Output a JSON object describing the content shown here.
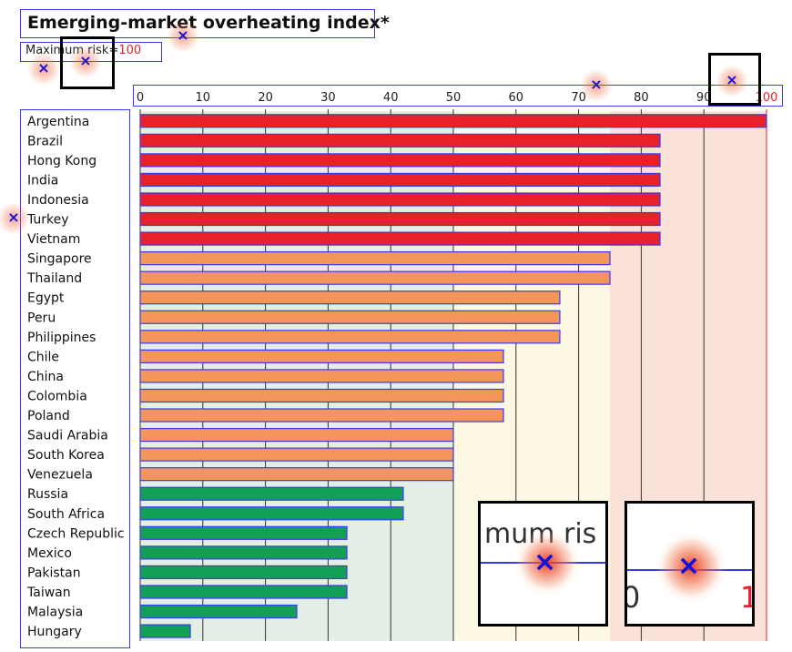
{
  "chart_data": {
    "type": "bar",
    "orientation": "horizontal",
    "title": "Emerging-market overheating index*",
    "subtitle_prefix": "Maximum risk=",
    "subtitle_value": "100",
    "xlim": [
      0,
      100
    ],
    "x_ticks": [
      "0",
      "10",
      "20",
      "30",
      "40",
      "50",
      "60",
      "70",
      "80",
      "90",
      "100"
    ],
    "categories": [
      "Argentina",
      "Brazil",
      "Hong Kong",
      "India",
      "Indonesia",
      "Turkey",
      "Vietnam",
      "Singapore",
      "Thailand",
      "Egypt",
      "Peru",
      "Philippines",
      "Chile",
      "China",
      "Colombia",
      "Poland",
      "Saudi Arabia",
      "South Korea",
      "Venezuela",
      "Russia",
      "South Africa",
      "Czech Republic",
      "Mexico",
      "Pakistan",
      "Taiwan",
      "Malaysia",
      "Hungary"
    ],
    "values": [
      100,
      83,
      83,
      83,
      83,
      83,
      83,
      75,
      75,
      67,
      67,
      67,
      58,
      58,
      58,
      58,
      50,
      50,
      50,
      42,
      42,
      33,
      33,
      33,
      33,
      25,
      8
    ],
    "risk_levels": [
      "high",
      "high",
      "high",
      "high",
      "high",
      "high",
      "high",
      "medium",
      "medium",
      "medium",
      "medium",
      "medium",
      "medium",
      "medium",
      "medium",
      "medium",
      "medium",
      "medium",
      "medium",
      "low",
      "low",
      "low",
      "low",
      "low",
      "low",
      "low",
      "low"
    ],
    "colors": {
      "high": "#e8202a",
      "medium": "#f4965a",
      "low": "#13a055",
      "band_low": "#e3eee6",
      "band_medium": "#fdf8e4",
      "band_high": "#fbe2d9",
      "max_line": "#e8202a",
      "grid": "#333333",
      "annotation": "#3a3aee"
    },
    "bands": [
      {
        "name": "low",
        "from": 0,
        "to": 50
      },
      {
        "name": "medium",
        "from": 50,
        "to": 75
      },
      {
        "name": "high",
        "from": 75,
        "to": 100
      }
    ]
  },
  "insets": {
    "left_text": "mum ris",
    "right_text": "0",
    "right_text_red": "1"
  }
}
